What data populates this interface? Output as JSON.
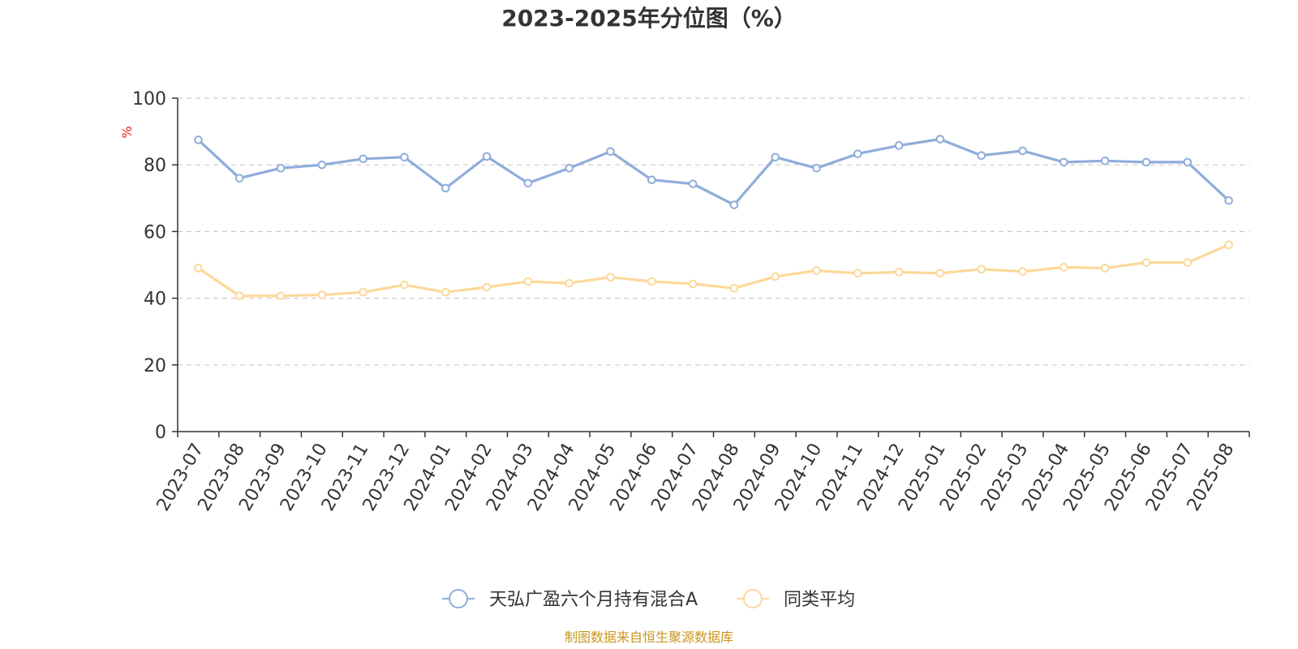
{
  "chart_data": {
    "type": "line",
    "title": "2023-2025年分位图（%）",
    "ylabel": "%",
    "ylim": [
      0,
      100
    ],
    "yticks": [
      0,
      20,
      40,
      60,
      80,
      100
    ],
    "grid": true,
    "legend_position": "bottom",
    "categories": [
      "2023-07",
      "2023-08",
      "2023-09",
      "2023-10",
      "2023-11",
      "2023-12",
      "2024-01",
      "2024-02",
      "2024-03",
      "2024-04",
      "2024-05",
      "2024-06",
      "2024-07",
      "2024-08",
      "2024-09",
      "2024-10",
      "2024-11",
      "2024-12",
      "2025-01",
      "2025-02",
      "2025-03",
      "2025-04",
      "2025-05",
      "2025-06",
      "2025-07",
      "2025-08"
    ],
    "series": [
      {
        "name": "天弘广盈六个月持有混合A",
        "color": "#8eaddb",
        "values": [
          87.5,
          76.0,
          79.0,
          80.0,
          81.8,
          82.3,
          73.0,
          82.5,
          74.5,
          79.0,
          84.0,
          75.5,
          74.3,
          68.0,
          82.3,
          79.0,
          83.3,
          85.8,
          87.7,
          82.8,
          84.2,
          80.8,
          81.2,
          80.8,
          80.8,
          69.3
        ]
      },
      {
        "name": "同类平均",
        "color": "#fcd899",
        "values": [
          49.0,
          40.7,
          40.7,
          41.0,
          41.8,
          44.0,
          41.8,
          43.3,
          45.0,
          44.5,
          46.3,
          45.0,
          44.3,
          43.0,
          46.5,
          48.3,
          47.5,
          47.8,
          47.5,
          48.7,
          48.0,
          49.3,
          49.0,
          50.7,
          50.7,
          56.0
        ]
      }
    ]
  },
  "footer": {
    "source": "制图数据来自恒生聚源数据库"
  }
}
